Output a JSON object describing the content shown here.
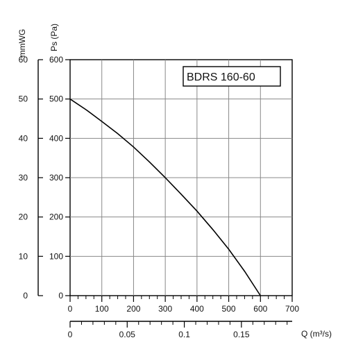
{
  "chart_data": {
    "type": "line",
    "title": "",
    "label_box": "BDRS 160-60",
    "xlabel_top_axis": "",
    "xlabel_bottom_axis": "Q (m³/s)",
    "ylabel_left_outer": "mmWG",
    "ylabel_left_inner": "Ps (Pa)",
    "x_airflow_m3h": {
      "range": [
        0,
        700
      ],
      "ticks": [
        0,
        100,
        200,
        300,
        400,
        500,
        600,
        700
      ],
      "tick_labels": [
        "0",
        "100",
        "200",
        "300",
        "400",
        "500",
        "600",
        "700"
      ]
    },
    "x_airflow_m3s": {
      "ticks": [
        0,
        0.05,
        0.1,
        0.15
      ],
      "tick_labels": [
        "0",
        "0.05",
        "0.1",
        "0.15"
      ]
    },
    "y_pressure_pa": {
      "range": [
        0,
        600
      ],
      "ticks": [
        0,
        100,
        200,
        300,
        400,
        500,
        600
      ],
      "tick_labels": [
        "0",
        "100",
        "200",
        "300",
        "400",
        "500",
        "600"
      ]
    },
    "y_pressure_mmwg": {
      "range": [
        0,
        60
      ],
      "ticks": [
        0,
        10,
        20,
        30,
        40,
        50,
        60
      ],
      "tick_labels": [
        "0",
        "10",
        "20",
        "30",
        "40",
        "50",
        "60"
      ]
    },
    "grid": true,
    "series": [
      {
        "x": [
          0,
          50,
          100,
          150,
          200,
          250,
          300,
          350,
          400,
          450,
          500,
          550,
          600
        ],
        "y": [
          500,
          473,
          443,
          412,
          378,
          340,
          300,
          258,
          215,
          168,
          118,
          62,
          0
        ]
      }
    ]
  }
}
